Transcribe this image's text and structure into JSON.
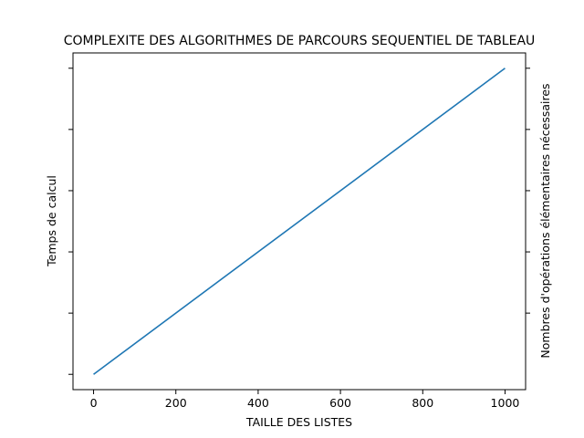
{
  "chart_data": {
    "type": "line",
    "title": "COMPLEXITE DES ALGORITHMES DE PARCOURS SEQUENTIEL DE TABLEAU",
    "xlabel": "TAILLE DES LISTES",
    "ylabel_left": "Temps de calcul",
    "ylabel_right": "Nombres d'opérations élémentaires nécessaires",
    "xlim": [
      -50,
      1050
    ],
    "x_ticks": [
      0,
      200,
      400,
      600,
      800,
      1000
    ],
    "x_tick_labels": [
      "0",
      "200",
      "400",
      "600",
      "800",
      "1000"
    ],
    "ylim": [
      -0.05,
      1.05
    ],
    "y_ticks_left": [
      0.0,
      0.2,
      0.4,
      0.6,
      0.8,
      1.0
    ],
    "y_ticks_right": [
      0.2,
      0.4,
      0.6,
      0.8,
      1.0
    ],
    "y_tick_labels_visible": false,
    "grid": false,
    "series": [
      {
        "color": "#1f77b4",
        "x": [
          0,
          1000
        ],
        "y": [
          0.0,
          1.0
        ]
      }
    ]
  }
}
